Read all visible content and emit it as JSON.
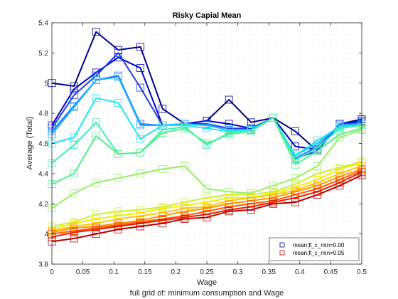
{
  "chart_data": {
    "type": "line",
    "title": "Risky Capial Mean",
    "xlabel": "Wage",
    "ylabel": "Average (Total)",
    "caption": "full grid of: minimum consumption and Wage",
    "xlim": [
      0,
      0.5
    ],
    "ylim": [
      3.8,
      5.4
    ],
    "x_ticks": [
      "0",
      "0.05",
      "0.1",
      "0.15",
      "0.2",
      "0.25",
      "0.3",
      "0.35",
      "0.4",
      "0.45",
      "0.5"
    ],
    "y_ticks": [
      "3.8",
      "4",
      "4.2",
      "4.4",
      "4.6",
      "4.8",
      "5",
      "5.2",
      "5.4"
    ],
    "grid": "minor dotted",
    "legend_position": "bottom-right",
    "legend": [
      {
        "label": "mean;fl_c_min=0.00",
        "color": "#0000aa"
      },
      {
        "label": "mean;fl_c_min=0.05",
        "color": "#cc0000"
      }
    ],
    "x": [
      0,
      0.0357,
      0.0714,
      0.1071,
      0.1429,
      0.1786,
      0.2143,
      0.25,
      0.2857,
      0.3214,
      0.3571,
      0.3929,
      0.4286,
      0.4643,
      0.5
    ],
    "series": [
      {
        "color": "#00008b",
        "values": [
          5.0,
          4.98,
          5.34,
          5.22,
          5.24,
          4.83,
          4.73,
          4.75,
          4.89,
          4.74,
          4.77,
          4.68,
          4.55,
          4.73,
          4.76
        ]
      },
      {
        "color": "#0000cd",
        "values": [
          4.72,
          4.96,
          5.07,
          5.17,
          5.1,
          4.72,
          4.73,
          4.75,
          4.73,
          4.7,
          4.77,
          4.58,
          4.56,
          4.73,
          4.75
        ]
      },
      {
        "color": "#1e3ce6",
        "values": [
          4.7,
          4.92,
          5.05,
          5.2,
          4.97,
          4.72,
          4.73,
          4.73,
          4.7,
          4.7,
          4.77,
          4.5,
          4.55,
          4.73,
          4.74
        ]
      },
      {
        "color": "#1e78ff",
        "values": [
          4.68,
          4.85,
          5.02,
          5.05,
          4.73,
          4.72,
          4.73,
          4.72,
          4.69,
          4.69,
          4.77,
          4.5,
          4.58,
          4.72,
          4.73
        ]
      },
      {
        "color": "#1eb4ff",
        "values": [
          4.66,
          4.84,
          5.02,
          5.04,
          4.72,
          4.72,
          4.73,
          4.72,
          4.69,
          4.69,
          4.77,
          4.52,
          4.6,
          4.72,
          4.73
        ]
      },
      {
        "color": "#1ee6f0",
        "values": [
          4.6,
          4.64,
          4.9,
          4.87,
          4.63,
          4.72,
          4.72,
          4.7,
          4.68,
          4.69,
          4.77,
          4.52,
          4.62,
          4.71,
          4.72
        ]
      },
      {
        "color": "#3cf0b4",
        "values": [
          4.47,
          4.59,
          4.74,
          4.53,
          4.54,
          4.69,
          4.71,
          4.59,
          4.67,
          4.68,
          4.77,
          4.49,
          4.57,
          4.7,
          4.72
        ]
      },
      {
        "color": "#50f08c",
        "values": [
          4.33,
          4.4,
          4.65,
          4.53,
          4.54,
          4.67,
          4.7,
          4.6,
          4.66,
          4.68,
          4.77,
          4.46,
          4.55,
          4.66,
          4.7
        ]
      },
      {
        "color": "#96f064",
        "values": [
          4.17,
          4.27,
          4.34,
          4.37,
          4.4,
          4.43,
          4.45,
          4.3,
          4.28,
          4.27,
          4.32,
          4.37,
          4.45,
          4.64,
          4.69
        ]
      },
      {
        "color": "#c8f032",
        "values": [
          4.05,
          4.08,
          4.13,
          4.15,
          4.16,
          4.18,
          4.21,
          4.24,
          4.26,
          4.26,
          4.28,
          4.33,
          4.4,
          4.44,
          4.48
        ]
      },
      {
        "color": "#f0f000",
        "values": [
          4.03,
          4.07,
          4.1,
          4.12,
          4.14,
          4.17,
          4.19,
          4.21,
          4.24,
          4.24,
          4.27,
          4.31,
          4.36,
          4.43,
          4.47
        ]
      },
      {
        "color": "#ffc800",
        "values": [
          4.02,
          4.05,
          4.07,
          4.1,
          4.12,
          4.14,
          4.17,
          4.18,
          4.22,
          4.24,
          4.26,
          4.29,
          4.34,
          4.4,
          4.45
        ]
      },
      {
        "color": "#ff9600",
        "values": [
          4.01,
          4.04,
          4.05,
          4.07,
          4.09,
          4.12,
          4.15,
          4.17,
          4.2,
          4.22,
          4.24,
          4.28,
          4.32,
          4.38,
          4.43
        ]
      },
      {
        "color": "#ff5a00",
        "values": [
          4.0,
          4.02,
          4.04,
          4.06,
          4.08,
          4.1,
          4.12,
          4.15,
          4.18,
          4.2,
          4.22,
          4.26,
          4.3,
          4.36,
          4.42
        ]
      },
      {
        "color": "#e61e00",
        "values": [
          3.98,
          4.01,
          4.03,
          4.05,
          4.07,
          4.09,
          4.11,
          4.13,
          4.16,
          4.18,
          4.21,
          4.24,
          4.28,
          4.34,
          4.41
        ]
      },
      {
        "color": "#b40000",
        "values": [
          3.95,
          3.97,
          4.0,
          4.03,
          4.05,
          4.07,
          4.1,
          4.11,
          4.15,
          4.16,
          4.2,
          4.21,
          4.26,
          4.32,
          4.39
        ]
      }
    ]
  }
}
